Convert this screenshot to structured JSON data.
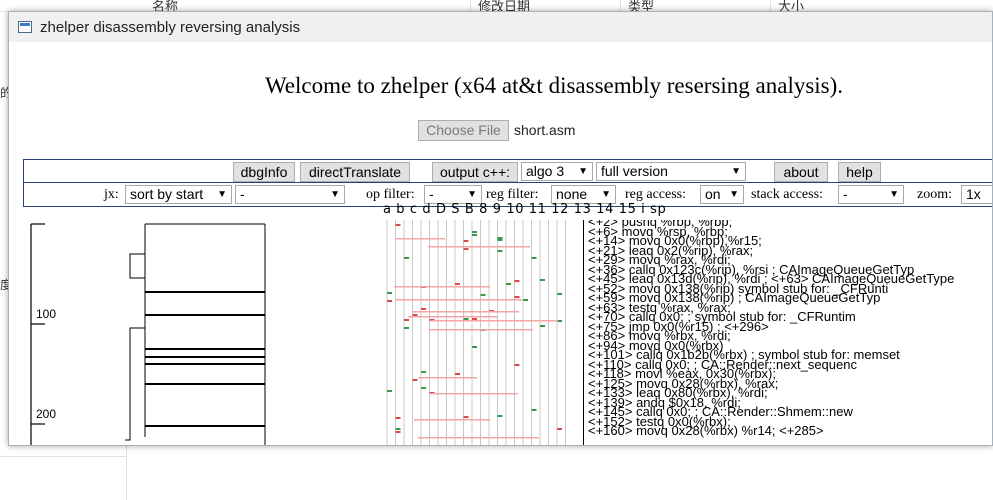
{
  "background": {
    "columns": [
      "名称",
      "修改日期",
      "类型",
      "大小"
    ],
    "left_glyphs": [
      "的",
      "度"
    ]
  },
  "window": {
    "title": "zhelper disassembly reversing analysis"
  },
  "page": {
    "welcome": "Welcome to zhelper (x64 at&t disassembly resersing analysis).",
    "choose_file": "Choose File",
    "file_name": "short.asm"
  },
  "toolbar1": {
    "dbginfo": "dbgInfo",
    "direct_translate": "directTranslate",
    "output": "output c++:",
    "algo": "algo 3",
    "version": "full version",
    "about": "about",
    "help": "help"
  },
  "toolbar2": {
    "jx_label": "jx:",
    "sort": "sort by start",
    "jx_filter": "-",
    "op_filter_label": "op filter:",
    "op_filter": "-",
    "reg_filter_label": "reg filter:",
    "reg_filter": "none",
    "reg_access_label": "reg access:",
    "reg_access": "on",
    "stack_access_label": "stack access:",
    "stack_access": "-",
    "zoom_label": "zoom:",
    "zoom": "1x"
  },
  "graph": {
    "axis_labels": [
      "100",
      "200"
    ]
  },
  "regs": {
    "columns_header": "a b c d D S B   8 9 10 11 12 13 14 15 i  sp"
  },
  "asm": {
    "lines": [
      "<+2>     pushq  %rbp, %rbp;",
      "<+6>     movq   %rsp, %rbp;",
      "<+14>    movq   0x0(%rbp),%r15;",
      "<+21>    leaq   0x2(%rip), %rax;",
      "<+29>    movq   %rax, %rdi;",
      "<+36>    callq  0x123c(%rip), %rsi     ;  CAImageQueueGetTyp",
      "<+45>    leaq   0x13d(%rip), %rdi ;  <+63>  CAImageQueueGetType",
      "<+52>    movq   0x138(%rip)   symbol stub for: _CFRunti",
      "<+59>    movq   0x138(%rip)       ;  CAImageQueueGetTyp",
      "<+63>    testq  %rax, %rax;",
      "<+70>    callq  0x0;              ;  symbol stub for: _CFRuntim",
      "<+75>    jmp    0x0(%r15)          ;  <+296>",
      "<+86>    movq   %rbx, %rdi;",
      "<+94>    movq   0x0(%rbx)",
      "<+101>   callq  0x1b2b(%rbx)   ;  symbol stub for: memset",
      "<+110>   callq  0x0;              ;  CA::Render::next_sequenc",
      "<+118>   movl   %eax, 0x30(%rbx);",
      "<+125>   movq   0x28(%rbx), %rax;",
      "<+133>   leaq   0x80(%rbx), %rdi;",
      "<+139>   andq   $0x18, %rdi;",
      "<+145>   callq  0x0;              ;  CA::Render::Shmem::new",
      "<+152>   testq  0x0(%rbx);",
      "<+160>   movq   0x28(%rbx) %r14;   <+285>"
    ]
  },
  "colors": {
    "window_border": "#a7b2bf",
    "toolbar_border": "#2b3f78",
    "button_bg": "#e1e1e1",
    "reg_write": "#d94a4a",
    "reg_read": "#3a9a4a",
    "reg_span": "#f4a6a6"
  }
}
